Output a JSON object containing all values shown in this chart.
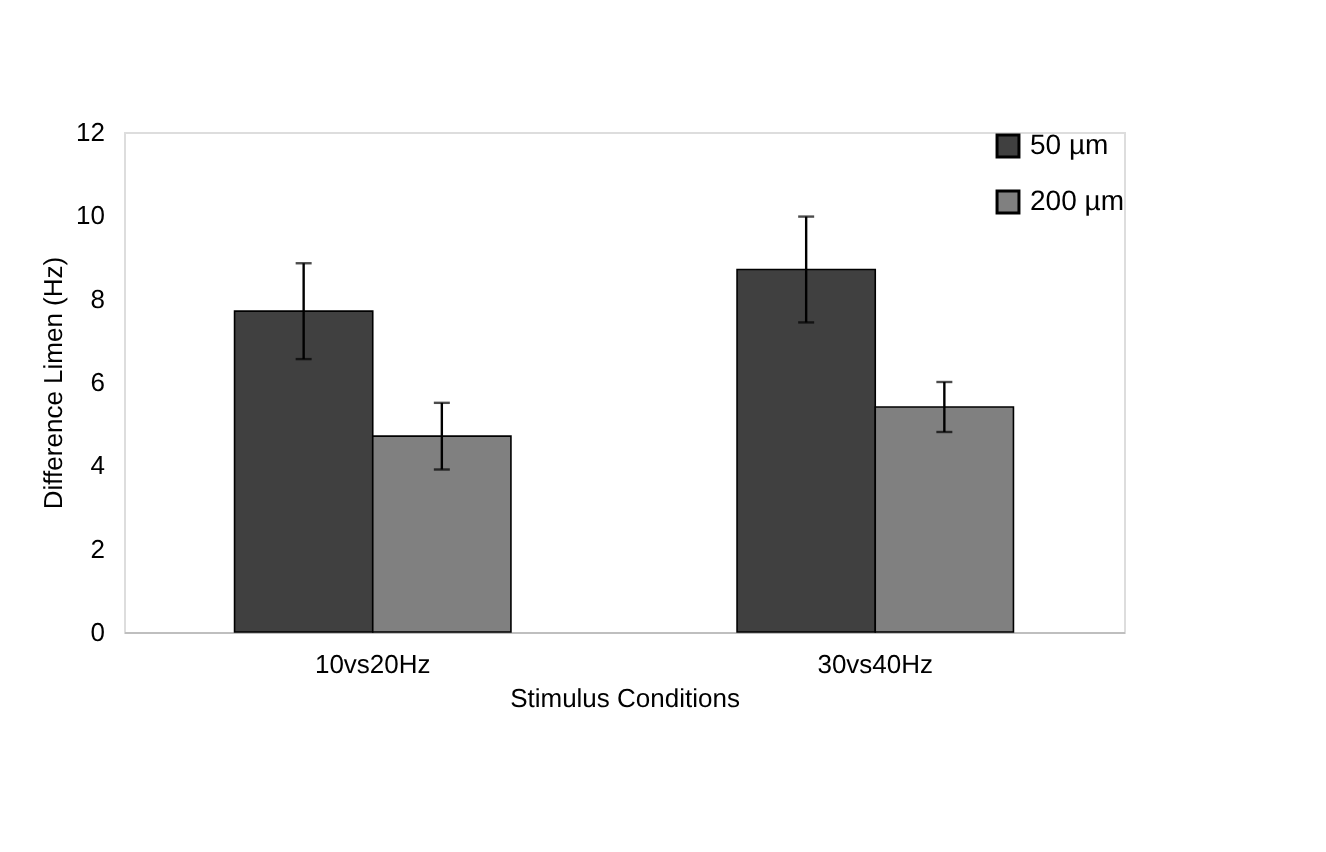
{
  "chart_data": {
    "type": "bar",
    "xlabel": "Stimulus Conditions",
    "ylabel": "Difference Limen (Hz)",
    "categories": [
      "10vs20Hz",
      "30vs40Hz"
    ],
    "series": [
      {
        "name": "50 µm",
        "color": "#404040",
        "values": [
          7.7,
          8.7
        ],
        "errors": [
          1.15,
          1.27
        ]
      },
      {
        "name": "200 µm",
        "color": "#808080",
        "values": [
          4.7,
          5.4
        ],
        "errors": [
          0.8,
          0.6
        ]
      }
    ],
    "ylim": [
      0,
      12
    ],
    "yticks": [
      0,
      2,
      4,
      6,
      8,
      10,
      12
    ],
    "grid": false,
    "legend": "top right"
  }
}
